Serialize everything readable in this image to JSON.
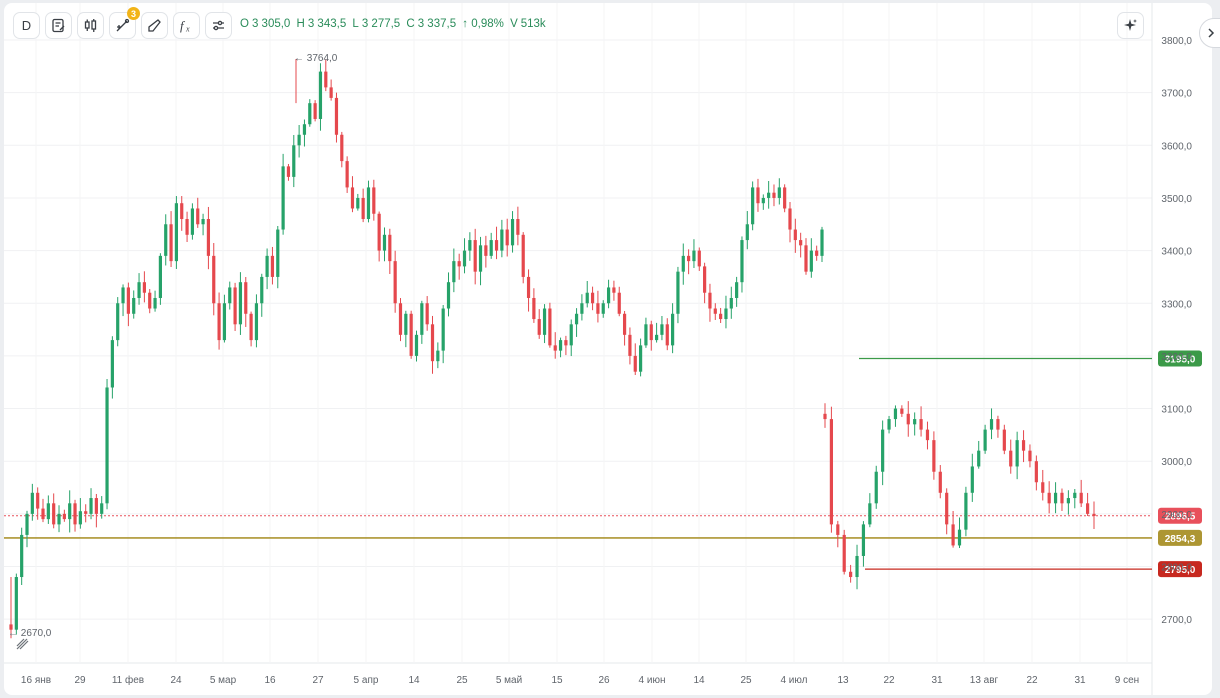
{
  "toolbar": {
    "interval_label": "D",
    "drawings_badge": "3",
    "items": [
      "D",
      "file-edit-icon",
      "candles-icon",
      "draw-line-icon",
      "ruler-icon",
      "fx-icon",
      "settings-sliders-icon"
    ]
  },
  "ohlc": {
    "o_label": "O",
    "o_value": "3 305,0",
    "h_label": "H",
    "h_value": "3 343,5",
    "l_label": "L",
    "l_value": "3 277,5",
    "c_label": "C",
    "c_value": "3 337,5",
    "change": "↑ 0,98%",
    "v_label": "V",
    "v_value": "513k"
  },
  "annotations": {
    "high_label": "← 3764,0",
    "low_label": "← 2670,0"
  },
  "colors": {
    "up": "#26a269",
    "down": "#e5484d",
    "hline_green": "#3b9a48",
    "hline_olive": "#ad9633",
    "hline_red": "#c7281f",
    "price_dotted": "#e8505b"
  },
  "chart_data": {
    "type": "candlestick",
    "y_axis": {
      "ticks": [
        "3800,0",
        "3700,0",
        "3600,0",
        "3500,0",
        "3400,0",
        "3300,0",
        "3200,0",
        "3100,0",
        "3000,0",
        "2900,0",
        "2800,0",
        "2700,0"
      ],
      "tick_values": [
        3800,
        3700,
        3600,
        3500,
        3400,
        3300,
        3200,
        3100,
        3000,
        2900,
        2800,
        2700
      ],
      "ylim": [
        2620,
        3835
      ]
    },
    "x_axis": {
      "ticks": [
        "16 янв",
        "29",
        "11 фев",
        "24",
        "5 мар",
        "16",
        "27",
        "5 апр",
        "14",
        "25",
        "5 май",
        "15",
        "26",
        "4 июн",
        "14",
        "25",
        "4 июл",
        "13",
        "22",
        "31",
        "13 авг",
        "22",
        "31",
        "9 сен"
      ]
    },
    "grid": true,
    "last_price": {
      "label": "2896,5",
      "value": 2896.5
    },
    "horizontal_lines": [
      {
        "label": "3195,0",
        "value": 3195.0,
        "color": "green"
      },
      {
        "label": "2854,3",
        "value": 2854.3,
        "color": "olive"
      },
      {
        "label": "2795,0",
        "value": 2795.0,
        "color": "red"
      }
    ],
    "extremes": {
      "high": 3764.0,
      "low": 2670.0
    },
    "segments": [
      {
        "note": "mid-Jan to early Jul",
        "closes": [
          2680,
          2780,
          2860,
          2900,
          2940,
          2910,
          2890,
          2920,
          2880,
          2900,
          2890,
          2920,
          2880,
          2905,
          2900,
          2930,
          2900,
          2920,
          3140,
          3230,
          3300,
          3330,
          3280,
          3310,
          3340,
          3320,
          3290,
          3310,
          3390,
          3450,
          3380,
          3490,
          3460,
          3430,
          3480,
          3450,
          3460,
          3390,
          3300,
          3230,
          3300,
          3330,
          3260,
          3340,
          3280,
          3230,
          3300,
          3350,
          3390,
          3350,
          3440,
          3560,
          3540,
          3600,
          3620,
          3640,
          3680,
          3650,
          3740,
          3710,
          3690,
          3620,
          3570,
          3520,
          3480,
          3500,
          3460,
          3520,
          3470,
          3400,
          3430,
          3380,
          3300,
          3240,
          3280,
          3200,
          3240,
          3300,
          3260,
          3190,
          3210,
          3290,
          3340,
          3380,
          3370,
          3400,
          3420,
          3360,
          3410,
          3390,
          3420,
          3400,
          3440,
          3410,
          3460,
          3430,
          3350,
          3310,
          3270,
          3240,
          3290,
          3220,
          3210,
          3230,
          3220,
          3260,
          3280,
          3300,
          3320,
          3300,
          3280,
          3300,
          3330,
          3320,
          3280,
          3240,
          3200,
          3170,
          3220,
          3260,
          3230,
          3240,
          3260,
          3220,
          3280,
          3360,
          3390,
          3380,
          3400,
          3370,
          3320,
          3290,
          3280,
          3270,
          3290,
          3310,
          3340,
          3420,
          3450,
          3520,
          3490,
          3500,
          3510,
          3500,
          3520,
          3480,
          3440,
          3420,
          3410,
          3360,
          3400,
          3390,
          3440
        ]
      },
      {
        "note": "mid-Jul to end of Aug",
        "closes": [
          3080,
          2880,
          2860,
          2790,
          2780,
          2820,
          2880,
          2920,
          2980,
          3060,
          3080,
          3100,
          3090,
          3070,
          3080,
          3060,
          3040,
          2980,
          2940,
          2880,
          2840,
          2870,
          2940,
          2990,
          3020,
          3060,
          3080,
          3060,
          3020,
          2990,
          3040,
          3020,
          3000,
          2960,
          2940,
          2920,
          2940,
          2920,
          2930,
          2940,
          2920,
          2900,
          2896
        ]
      }
    ]
  }
}
